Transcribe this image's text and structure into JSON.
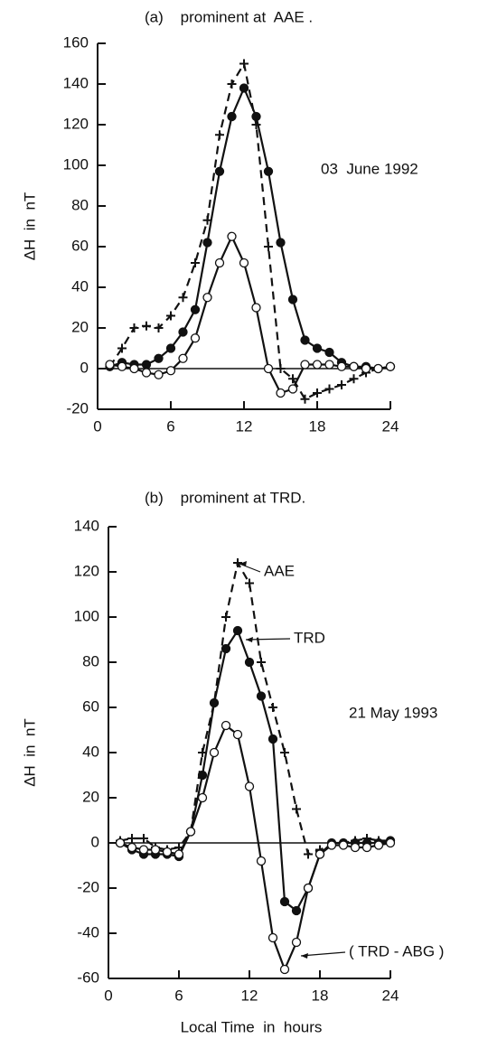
{
  "chart_data": [
    {
      "type": "line",
      "title": "(a)    prominent at  AAE .",
      "annotation": "03  June 1992",
      "ylabel": "ΔH  in  nT",
      "x": [
        1,
        2,
        3,
        4,
        5,
        6,
        7,
        8,
        9,
        10,
        11,
        12,
        13,
        14,
        15,
        16,
        17,
        18,
        19,
        20,
        21,
        22,
        23,
        24
      ],
      "xlim": [
        0,
        24
      ],
      "xticks": [
        0,
        6,
        12,
        18,
        24
      ],
      "ylim": [
        -20,
        160
      ],
      "yticks": [
        -20,
        0,
        20,
        40,
        60,
        80,
        100,
        120,
        140,
        160
      ],
      "series": [
        {
          "color": "#111111",
          "marker": "plus",
          "dashed": true,
          "values": [
            1,
            10,
            20,
            21,
            20,
            26,
            35,
            52,
            73,
            115,
            140,
            150,
            120,
            60,
            0,
            -5,
            -15,
            -12,
            -10,
            -8,
            -5,
            -2,
            0,
            1
          ]
        },
        {
          "color": "#111111",
          "marker": "filled",
          "dashed": false,
          "values": [
            1,
            3,
            2,
            2,
            5,
            10,
            18,
            29,
            62,
            97,
            124,
            138,
            124,
            97,
            62,
            34,
            14,
            10,
            8,
            3,
            1,
            1,
            0,
            1
          ]
        },
        {
          "color": "#111111",
          "marker": "open",
          "dashed": false,
          "values": [
            2,
            1,
            0,
            -2,
            -3,
            -1,
            5,
            15,
            35,
            52,
            65,
            52,
            30,
            0,
            -12,
            -10,
            2,
            2,
            2,
            1,
            1,
            0,
            0,
            1
          ]
        }
      ]
    },
    {
      "type": "line",
      "title": "(b)    prominent at TRD.",
      "annotation": "21 May 1993",
      "ylabel": "ΔH  in  nT",
      "xlabel": "Local Time  in  hours",
      "x": [
        1,
        2,
        3,
        4,
        5,
        6,
        7,
        8,
        9,
        10,
        11,
        12,
        13,
        14,
        15,
        16,
        17,
        18,
        19,
        20,
        21,
        22,
        23,
        24
      ],
      "xlim": [
        0,
        24
      ],
      "xticks": [
        0,
        6,
        12,
        18,
        24
      ],
      "ylim": [
        -60,
        140
      ],
      "yticks": [
        -60,
        -40,
        -20,
        0,
        20,
        40,
        60,
        80,
        100,
        120,
        140
      ],
      "series": [
        {
          "name": "AAE",
          "color": "#111111",
          "marker": "plus",
          "dashed": true,
          "values": [
            1,
            2,
            2,
            -2,
            -3,
            -2,
            5,
            40,
            62,
            100,
            124,
            115,
            80,
            60,
            40,
            15,
            -5,
            -3,
            -1,
            0,
            1,
            2,
            1,
            1
          ]
        },
        {
          "name": "TRD",
          "color": "#111111",
          "marker": "filled",
          "dashed": false,
          "values": [
            0,
            -3,
            -5,
            -5,
            -5,
            -6,
            5,
            30,
            62,
            86,
            94,
            80,
            65,
            46,
            -26,
            -30,
            -20,
            -5,
            0,
            0,
            0,
            0,
            0,
            1
          ]
        },
        {
          "name": "( TRD - ABG )",
          "color": "#111111",
          "marker": "open",
          "dashed": false,
          "values": [
            0,
            -2,
            -3,
            -3,
            -4,
            -5,
            5,
            20,
            40,
            52,
            48,
            25,
            -8,
            -42,
            -56,
            -44,
            -20,
            -5,
            -1,
            -1,
            -2,
            -2,
            -1,
            0
          ]
        }
      ]
    }
  ]
}
